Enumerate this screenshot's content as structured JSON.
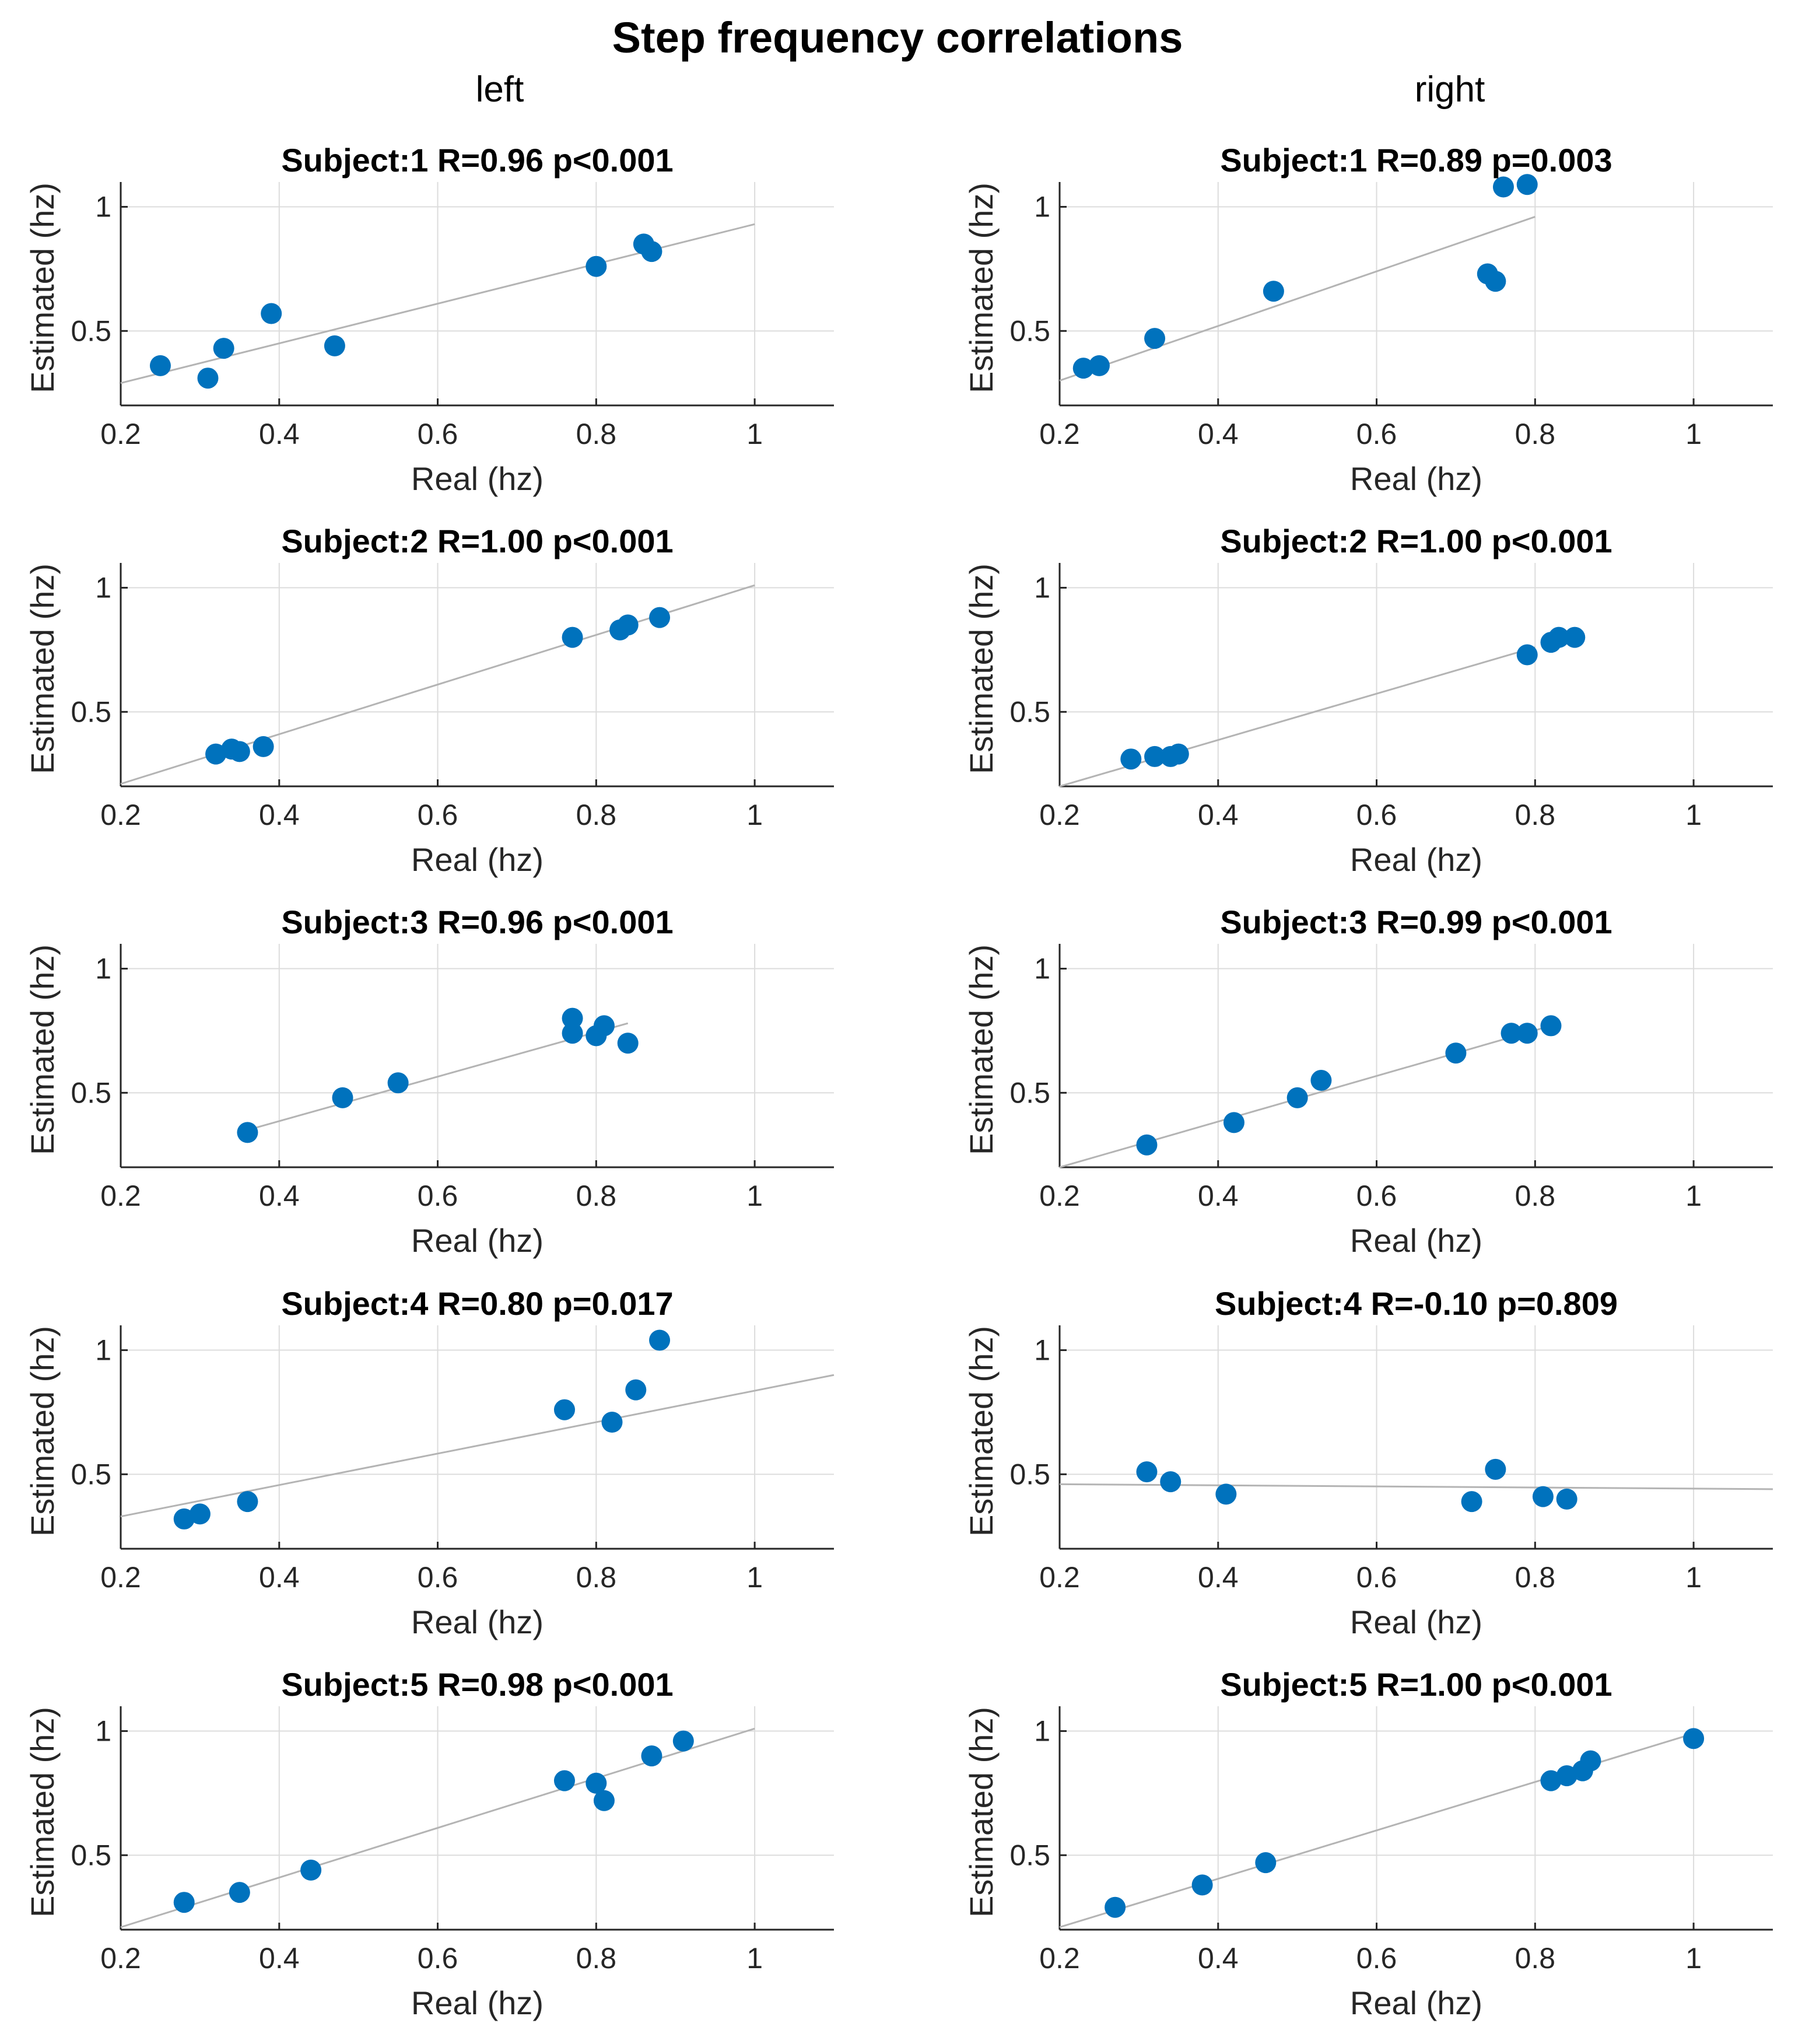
{
  "figure": {
    "title": "Step frequency correlations",
    "columns": [
      "left",
      "right"
    ]
  },
  "chart_data": [
    {
      "type": "scatter",
      "panel": "left",
      "row": 1,
      "title": "Subject:1 R=0.96 p<0.001",
      "xlabel": "Real (hz)",
      "ylabel": "Estimated (hz)",
      "xlim": [
        0.2,
        1.1
      ],
      "ylim": [
        0.2,
        1.1
      ],
      "xticks": [
        0.2,
        0.4,
        0.6,
        0.8,
        1
      ],
      "yticks": [
        0.5,
        1
      ],
      "x": [
        0.25,
        0.31,
        0.33,
        0.39,
        0.47,
        0.8,
        0.86,
        0.87
      ],
      "y": [
        0.36,
        0.31,
        0.43,
        0.57,
        0.44,
        0.76,
        0.85,
        0.82
      ],
      "fit": {
        "x": [
          0.2,
          1.0
        ],
        "y": [
          0.29,
          0.93
        ]
      }
    },
    {
      "type": "scatter",
      "panel": "right",
      "row": 1,
      "title": "Subject:1 R=0.89 p=0.003",
      "xlabel": "Real (hz)",
      "ylabel": "Estimated (hz)",
      "xlim": [
        0.2,
        1.1
      ],
      "ylim": [
        0.2,
        1.1
      ],
      "xticks": [
        0.2,
        0.4,
        0.6,
        0.8,
        1
      ],
      "yticks": [
        0.5,
        1
      ],
      "x": [
        0.23,
        0.25,
        0.32,
        0.47,
        0.74,
        0.75,
        0.76,
        0.79
      ],
      "y": [
        0.35,
        0.36,
        0.47,
        0.66,
        0.73,
        0.7,
        1.08,
        1.09
      ],
      "fit": {
        "x": [
          0.2,
          0.8
        ],
        "y": [
          0.3,
          0.96
        ]
      }
    },
    {
      "type": "scatter",
      "panel": "left",
      "row": 2,
      "title": "Subject:2 R=1.00 p<0.001",
      "xlabel": "Real (hz)",
      "ylabel": "Estimated (hz)",
      "xlim": [
        0.2,
        1.1
      ],
      "ylim": [
        0.2,
        1.1
      ],
      "xticks": [
        0.2,
        0.4,
        0.6,
        0.8,
        1
      ],
      "yticks": [
        0.5,
        1
      ],
      "x": [
        0.32,
        0.34,
        0.35,
        0.38,
        0.77,
        0.83,
        0.84,
        0.88
      ],
      "y": [
        0.33,
        0.35,
        0.34,
        0.36,
        0.8,
        0.83,
        0.85,
        0.88
      ],
      "fit": {
        "x": [
          0.2,
          1.0
        ],
        "y": [
          0.21,
          1.01
        ]
      }
    },
    {
      "type": "scatter",
      "panel": "right",
      "row": 2,
      "title": "Subject:2 R=1.00 p<0.001",
      "xlabel": "Real (hz)",
      "ylabel": "Estimated (hz)",
      "xlim": [
        0.2,
        1.1
      ],
      "ylim": [
        0.2,
        1.1
      ],
      "xticks": [
        0.2,
        0.4,
        0.6,
        0.8,
        1
      ],
      "yticks": [
        0.5,
        1
      ],
      "x": [
        0.29,
        0.32,
        0.34,
        0.35,
        0.79,
        0.82,
        0.83,
        0.85
      ],
      "y": [
        0.31,
        0.32,
        0.32,
        0.33,
        0.73,
        0.78,
        0.8,
        0.8
      ],
      "fit": {
        "x": [
          0.2,
          0.8
        ],
        "y": [
          0.2,
          0.76
        ]
      }
    },
    {
      "type": "scatter",
      "panel": "left",
      "row": 3,
      "title": "Subject:3 R=0.96 p<0.001",
      "xlabel": "Real (hz)",
      "ylabel": "Estimated (hz)",
      "xlim": [
        0.2,
        1.1
      ],
      "ylim": [
        0.2,
        1.1
      ],
      "xticks": [
        0.2,
        0.4,
        0.6,
        0.8,
        1
      ],
      "yticks": [
        0.5,
        1
      ],
      "x": [
        0.36,
        0.48,
        0.55,
        0.77,
        0.77,
        0.8,
        0.81,
        0.84
      ],
      "y": [
        0.34,
        0.48,
        0.54,
        0.74,
        0.8,
        0.73,
        0.77,
        0.7
      ],
      "fit": {
        "x": [
          0.36,
          0.84
        ],
        "y": [
          0.35,
          0.78
        ]
      }
    },
    {
      "type": "scatter",
      "panel": "right",
      "row": 3,
      "title": "Subject:3 R=0.99 p<0.001",
      "xlabel": "Real (hz)",
      "ylabel": "Estimated (hz)",
      "xlim": [
        0.2,
        1.1
      ],
      "ylim": [
        0.2,
        1.1
      ],
      "xticks": [
        0.2,
        0.4,
        0.6,
        0.8,
        1
      ],
      "yticks": [
        0.5,
        1
      ],
      "x": [
        0.31,
        0.42,
        0.5,
        0.53,
        0.7,
        0.77,
        0.79,
        0.82
      ],
      "y": [
        0.29,
        0.38,
        0.48,
        0.55,
        0.66,
        0.74,
        0.74,
        0.77
      ],
      "fit": {
        "x": [
          0.2,
          0.82
        ],
        "y": [
          0.2,
          0.77
        ]
      }
    },
    {
      "type": "scatter",
      "panel": "left",
      "row": 4,
      "title": "Subject:4 R=0.80 p=0.017",
      "xlabel": "Real (hz)",
      "ylabel": "Estimated (hz)",
      "xlim": [
        0.2,
        1.1
      ],
      "ylim": [
        0.2,
        1.1
      ],
      "xticks": [
        0.2,
        0.4,
        0.6,
        0.8,
        1
      ],
      "yticks": [
        0.5,
        1
      ],
      "x": [
        0.28,
        0.3,
        0.36,
        0.76,
        0.82,
        0.85,
        0.88
      ],
      "y": [
        0.32,
        0.34,
        0.39,
        0.76,
        0.71,
        0.84,
        1.04
      ],
      "fit": {
        "x": [
          0.2,
          1.1
        ],
        "y": [
          0.33,
          0.9
        ]
      }
    },
    {
      "type": "scatter",
      "panel": "right",
      "row": 4,
      "title": "Subject:4 R=-0.10 p=0.809",
      "xlabel": "Real (hz)",
      "ylabel": "Estimated (hz)",
      "xlim": [
        0.2,
        1.1
      ],
      "ylim": [
        0.2,
        1.1
      ],
      "xticks": [
        0.2,
        0.4,
        0.6,
        0.8,
        1
      ],
      "yticks": [
        0.5,
        1
      ],
      "x": [
        0.31,
        0.34,
        0.41,
        0.72,
        0.75,
        0.81,
        0.84
      ],
      "y": [
        0.51,
        0.47,
        0.42,
        0.39,
        0.52,
        0.41,
        0.4
      ],
      "fit": {
        "x": [
          0.2,
          1.1
        ],
        "y": [
          0.46,
          0.44
        ]
      }
    },
    {
      "type": "scatter",
      "panel": "left",
      "row": 5,
      "title": "Subject:5 R=0.98 p<0.001",
      "xlabel": "Real (hz)",
      "ylabel": "Estimated (hz)",
      "xlim": [
        0.2,
        1.1
      ],
      "ylim": [
        0.2,
        1.1
      ],
      "xticks": [
        0.2,
        0.4,
        0.6,
        0.8,
        1
      ],
      "yticks": [
        0.5,
        1
      ],
      "x": [
        0.28,
        0.35,
        0.44,
        0.76,
        0.8,
        0.81,
        0.87,
        0.91
      ],
      "y": [
        0.31,
        0.35,
        0.44,
        0.8,
        0.79,
        0.72,
        0.9,
        0.96
      ],
      "fit": {
        "x": [
          0.2,
          1.0
        ],
        "y": [
          0.21,
          1.01
        ]
      }
    },
    {
      "type": "scatter",
      "panel": "right",
      "row": 5,
      "title": "Subject:5 R=1.00 p<0.001",
      "xlabel": "Real (hz)",
      "ylabel": "Estimated (hz)",
      "xlim": [
        0.2,
        1.1
      ],
      "ylim": [
        0.2,
        1.1
      ],
      "xticks": [
        0.2,
        0.4,
        0.6,
        0.8,
        1
      ],
      "yticks": [
        0.5,
        1
      ],
      "x": [
        0.27,
        0.38,
        0.46,
        0.82,
        0.84,
        0.86,
        0.87,
        1.0
      ],
      "y": [
        0.29,
        0.38,
        0.47,
        0.8,
        0.82,
        0.84,
        0.88,
        0.97
      ],
      "fit": {
        "x": [
          0.2,
          1.0
        ],
        "y": [
          0.21,
          0.99
        ]
      }
    }
  ]
}
